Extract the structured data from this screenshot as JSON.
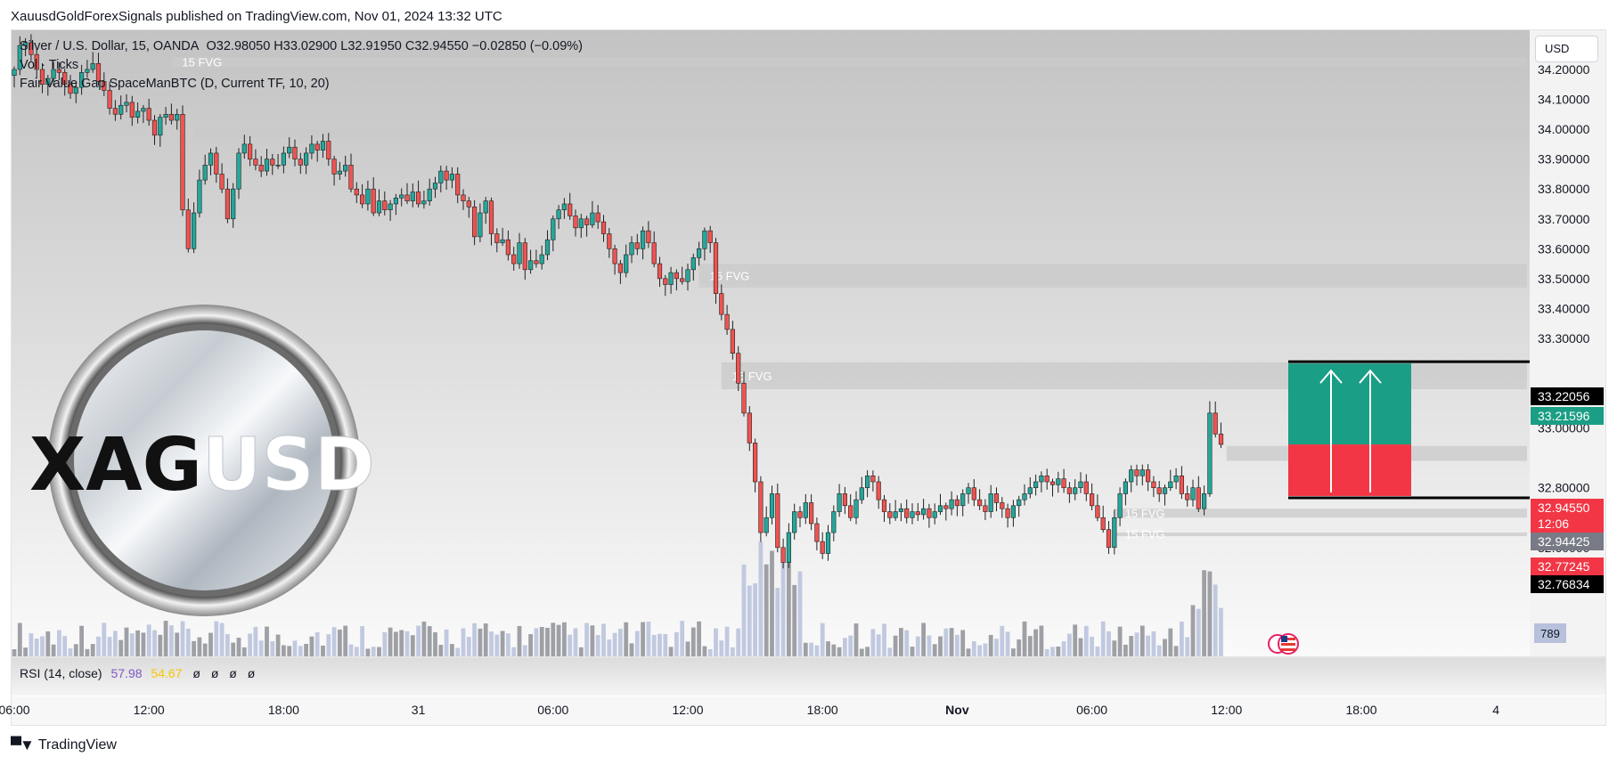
{
  "publisher": "XauusdGoldForexSignals published on TradingView.com, Nov 01, 2024 13:32 UTC",
  "legend": {
    "symbol": "Silver / U.S. Dollar, 15, OANDA",
    "ohlc": "O32.98050  H33.02900  L32.91950  C32.94550  −0.02850 (−0.09%)",
    "vol": "Vol · Ticks",
    "indicator": "Fair Value Gap SpaceManBTC (D, Current TF, 10, 20)"
  },
  "currency_button": "USD",
  "footer_brand": "TradingView",
  "coin_text_dark": "XAG",
  "coin_text_light": "USD",
  "rsi": {
    "label": "RSI (14, close)",
    "value": "57.98",
    "ma_value": "54.67",
    "na_values": [
      "ø",
      "ø",
      "ø",
      "ø"
    ]
  },
  "volume_badge": "789",
  "colors": {
    "up": "#26a69a",
    "down": "#ef5350",
    "fvg_zone": "#c9c9c9",
    "target": "#1a9e85",
    "stop": "#f23645",
    "volume": "#b7c1dc",
    "volume_dark": "#8e9096"
  },
  "chart_data": {
    "type": "candlestick",
    "instrument": "Silver / U.S. Dollar, 15, OANDA",
    "timeframe": "15",
    "y_range": [
      32.51,
      34.32
    ],
    "y_ticks": [
      "34.20000",
      "34.10000",
      "34.00000",
      "33.90000",
      "33.80000",
      "33.70000",
      "33.60000",
      "33.50000",
      "33.40000",
      "33.30000",
      "33.10000",
      "33.00000",
      "32.80000",
      "32.60000"
    ],
    "x_ticks": [
      {
        "label": "06:00",
        "bar": 0
      },
      {
        "label": "12:00",
        "bar": 24
      },
      {
        "label": "18:00",
        "bar": 48
      },
      {
        "label": "31",
        "bar": 72
      },
      {
        "label": "06:00",
        "bar": 96
      },
      {
        "label": "12:00",
        "bar": 120
      },
      {
        "label": "18:00",
        "bar": 144
      },
      {
        "label": "Nov",
        "bar": 168
      },
      {
        "label": "06:00",
        "bar": 192
      },
      {
        "label": "12:00",
        "bar": 216
      },
      {
        "label": "18:00",
        "bar": 240
      },
      {
        "label": "4",
        "bar": 264
      }
    ],
    "price_labels": [
      {
        "value": "33.22056",
        "color": "#000000"
      },
      {
        "value": "33.21596",
        "color": "#1a9e85"
      },
      {
        "value": "32.94550",
        "color": "#f23645",
        "countdown": "12:06"
      },
      {
        "value": "32.94425",
        "color": "#787b86"
      },
      {
        "value": "32.77245",
        "color": "#f23645"
      },
      {
        "value": "32.76834",
        "color": "#000000"
      }
    ],
    "fvg_zones": [
      {
        "label": "15 FVG",
        "top": 34.24,
        "bottom": 34.21,
        "from_bar": 28
      },
      {
        "label": "",
        "top": 34.0,
        "bottom": 33.97,
        "from_bar": 32
      },
      {
        "label": "15 FVG",
        "top": 33.55,
        "bottom": 33.47,
        "from_bar": 122
      },
      {
        "label": "15 FVG",
        "top": 33.22,
        "bottom": 33.13,
        "from_bar": 126
      },
      {
        "label": "",
        "top": 32.94,
        "bottom": 32.89,
        "from_bar": 216
      },
      {
        "label": "15 FVG",
        "top": 32.73,
        "bottom": 32.7,
        "from_bar": 196
      },
      {
        "label": "15 FVG",
        "top": 32.65,
        "bottom": 32.64,
        "from_bar": 196
      }
    ],
    "position": {
      "entry": 32.945,
      "target": 33.21596,
      "stop": 32.77245,
      "from_bar": 220,
      "to_bar": 240
    },
    "closes": [
      34.2,
      34.28,
      34.29,
      34.25,
      34.2,
      34.15,
      34.17,
      34.2,
      34.19,
      34.15,
      34.12,
      34.14,
      34.19,
      34.2,
      34.22,
      34.16,
      34.13,
      34.07,
      34.05,
      34.08,
      34.09,
      34.04,
      34.06,
      34.07,
      34.03,
      33.98,
      34.04,
      34.05,
      34.03,
      34.05,
      33.73,
      33.6,
      33.72,
      33.83,
      33.88,
      33.92,
      33.85,
      33.8,
      33.7,
      33.8,
      33.92,
      33.95,
      33.9,
      33.88,
      33.86,
      33.9,
      33.88,
      33.88,
      33.92,
      33.94,
      33.9,
      33.88,
      33.92,
      33.95,
      33.93,
      33.96,
      33.9,
      33.85,
      33.86,
      33.88,
      33.8,
      33.78,
      33.75,
      33.8,
      33.72,
      33.76,
      33.73,
      33.75,
      33.77,
      33.78,
      33.76,
      33.79,
      33.75,
      33.76,
      33.8,
      33.82,
      33.86,
      33.83,
      33.85,
      33.78,
      33.76,
      33.74,
      33.64,
      33.72,
      33.76,
      33.65,
      33.62,
      33.63,
      33.58,
      33.55,
      33.62,
      33.53,
      33.56,
      33.55,
      33.58,
      33.63,
      33.7,
      33.73,
      33.75,
      33.71,
      33.67,
      33.7,
      33.68,
      33.72,
      33.69,
      33.65,
      33.6,
      33.55,
      33.52,
      33.58,
      33.62,
      33.6,
      33.66,
      33.62,
      33.55,
      33.5,
      33.48,
      33.52,
      33.5,
      33.49,
      33.53,
      33.57,
      33.6,
      33.66,
      33.62,
      33.45,
      33.38,
      33.33,
      33.25,
      33.15,
      33.05,
      32.95,
      32.82,
      32.65,
      32.7,
      32.78,
      32.6,
      32.55,
      32.65,
      32.72,
      32.7,
      32.75,
      32.68,
      32.62,
      32.58,
      32.65,
      32.72,
      32.78,
      32.74,
      32.7,
      32.76,
      32.8,
      32.84,
      32.82,
      32.76,
      32.72,
      32.7,
      32.72,
      32.73,
      32.7,
      32.72,
      32.71,
      32.73,
      32.7,
      32.72,
      32.74,
      32.73,
      32.76,
      32.74,
      32.78,
      32.8,
      32.76,
      32.74,
      32.72,
      32.78,
      32.75,
      32.73,
      32.7,
      32.74,
      32.76,
      32.78,
      32.8,
      32.82,
      32.84,
      32.82,
      32.81,
      32.83,
      32.8,
      32.78,
      32.8,
      32.82,
      32.78,
      32.74,
      32.7,
      32.66,
      32.6,
      32.7,
      32.78,
      32.82,
      32.86,
      32.84,
      32.86,
      32.82,
      32.8,
      32.78,
      32.8,
      32.82,
      32.84,
      32.78,
      32.76,
      32.8,
      32.73,
      32.78,
      33.05,
      32.98,
      32.945
    ]
  }
}
